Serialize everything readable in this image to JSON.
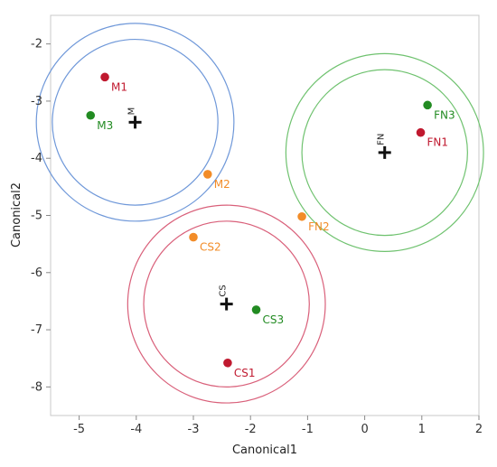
{
  "chart_data": {
    "type": "scatter",
    "xlabel": "Canonical1",
    "ylabel": "Canonical2",
    "xlim": [
      -5.5,
      2
    ],
    "ylim": [
      -8.5,
      -1.5
    ],
    "x_ticks": [
      "-5",
      "-4",
      "-3",
      "-2",
      "-1",
      "0",
      "1",
      "2"
    ],
    "y_ticks": [
      "-2",
      "-3",
      "-4",
      "-5",
      "-6",
      "-7",
      "-8"
    ],
    "colors": {
      "red": "#c0192f",
      "green": "#228b22",
      "orange": "#f28c28",
      "blue_circle": "#6f98d9",
      "green_circle": "#6fc26f",
      "pink_circle": "#d9607a"
    },
    "points": [
      {
        "label": "M1",
        "x": -4.55,
        "y": -2.58,
        "color": "red"
      },
      {
        "label": "M3",
        "x": -4.8,
        "y": -3.25,
        "color": "green"
      },
      {
        "label": "M2",
        "x": -2.75,
        "y": -4.28,
        "color": "orange"
      },
      {
        "label": "FN3",
        "x": 1.1,
        "y": -3.07,
        "color": "green"
      },
      {
        "label": "FN1",
        "x": 0.98,
        "y": -3.55,
        "color": "red"
      },
      {
        "label": "FN2",
        "x": -1.1,
        "y": -5.02,
        "color": "orange"
      },
      {
        "label": "CS2",
        "x": -3.0,
        "y": -5.38,
        "color": "orange"
      },
      {
        "label": "CS3",
        "x": -1.9,
        "y": -6.65,
        "color": "green"
      },
      {
        "label": "CS1",
        "x": -2.4,
        "y": -7.58,
        "color": "red"
      }
    ],
    "groups": [
      {
        "label": "M",
        "x": -4.02,
        "y": -3.37,
        "circle_color": "blue_circle",
        "r_inner": 1.45,
        "r_outer": 1.73
      },
      {
        "label": "FN",
        "x": 0.35,
        "y": -3.9,
        "circle_color": "green_circle",
        "r_inner": 1.45,
        "r_outer": 1.73
      },
      {
        "label": "CS",
        "x": -2.42,
        "y": -6.55,
        "circle_color": "pink_circle",
        "r_inner": 1.45,
        "r_outer": 1.73
      }
    ]
  }
}
